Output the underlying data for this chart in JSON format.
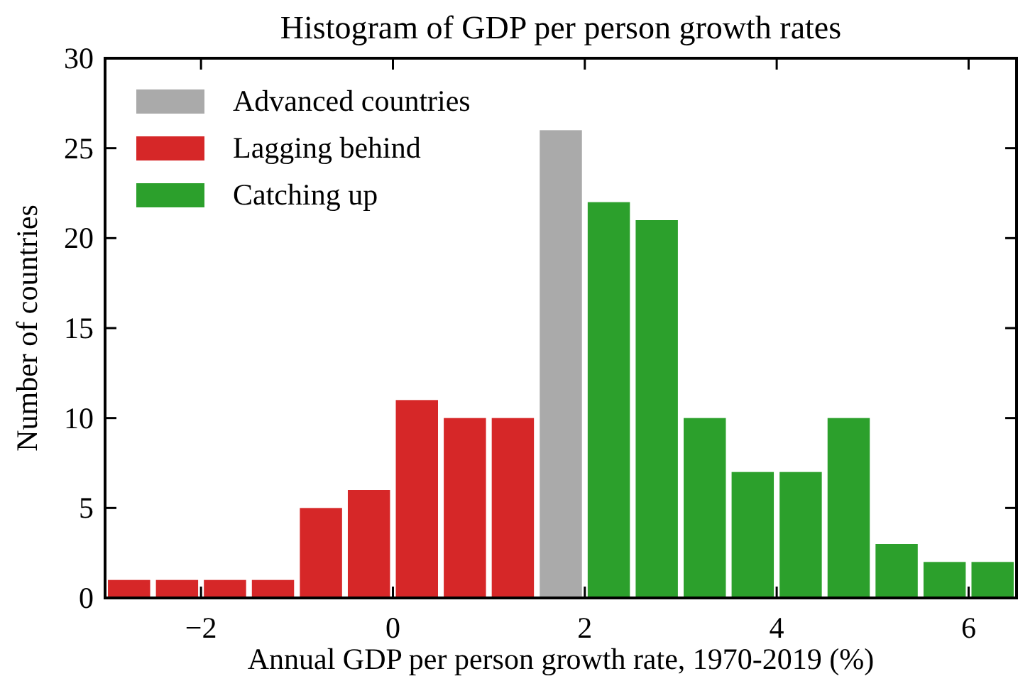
{
  "chart_data": {
    "type": "histogram",
    "title": "Histogram of GDP per person growth rates",
    "xlabel": "Annual GDP per person growth rate, 1970-2019 (%)",
    "ylabel": "Number of countries",
    "bins": [
      -3,
      -2.5,
      -2,
      -1.5,
      -1,
      -0.5,
      0,
      0.5,
      1,
      1.5,
      2,
      2.5,
      3,
      3.5,
      4,
      4.5,
      5,
      5.5,
      6,
      6.5
    ],
    "series": [
      {
        "name": "Advanced countries",
        "color": "#aaaaaa",
        "values": [
          null,
          null,
          null,
          null,
          null,
          null,
          null,
          null,
          null,
          26,
          null,
          null,
          null,
          null,
          null,
          null,
          null,
          null,
          null
        ]
      },
      {
        "name": "Lagging behind",
        "color": "#d62728",
        "values": [
          1,
          1,
          1,
          1,
          5,
          6,
          11,
          10,
          10,
          null,
          null,
          null,
          null,
          null,
          null,
          null,
          null,
          null,
          null
        ]
      },
      {
        "name": "Catching up",
        "color": "#2ca02c",
        "values": [
          null,
          null,
          null,
          null,
          null,
          null,
          null,
          null,
          null,
          null,
          22,
          21,
          10,
          7,
          7,
          10,
          3,
          2,
          2
        ]
      }
    ],
    "xlim": [
      -3,
      6.5
    ],
    "xticks": [
      {
        "value": -2,
        "label": "−2"
      },
      0,
      2,
      4,
      6
    ],
    "ylim": [
      0,
      30
    ],
    "yticks": [
      0,
      5,
      10,
      15,
      20,
      25,
      30
    ],
    "legend": "top left",
    "grid": false
  }
}
